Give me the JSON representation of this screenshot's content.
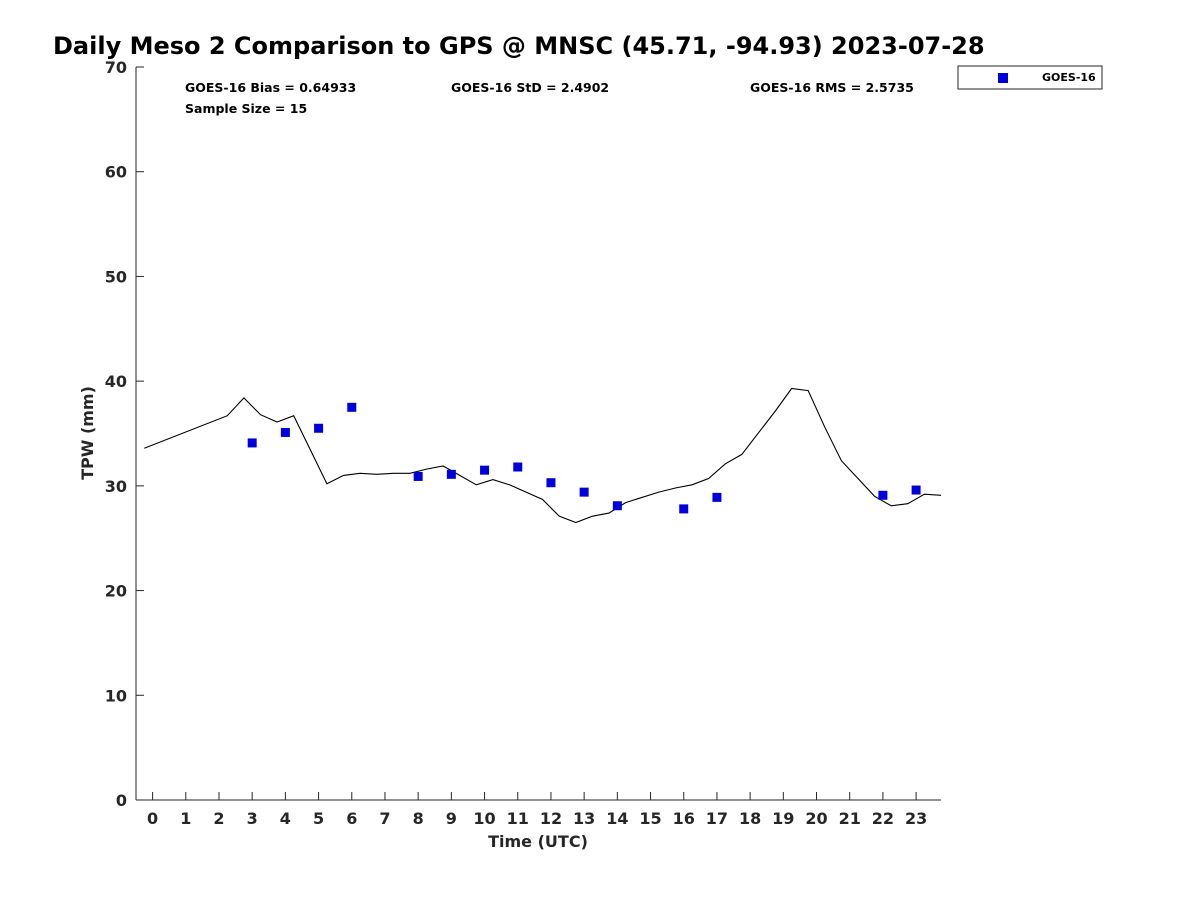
{
  "chart_data": {
    "type": "scatter",
    "title": "Daily Meso 2 Comparison to GPS @ MNSC (45.71, -94.93) 2023-07-28",
    "xlabel": "Time (UTC)",
    "ylabel": "TPW (mm)",
    "xlim": [
      -0.5,
      23.75
    ],
    "ylim": [
      0,
      70
    ],
    "x_ticks": [
      "0",
      "1",
      "2",
      "3",
      "4",
      "5",
      "6",
      "7",
      "8",
      "9",
      "10",
      "11",
      "12",
      "13",
      "14",
      "15",
      "16",
      "17",
      "18",
      "19",
      "20",
      "21",
      "22",
      "23"
    ],
    "y_ticks": [
      "0",
      "10",
      "20",
      "30",
      "40",
      "50",
      "60",
      "70"
    ],
    "grid": false,
    "legend_position": "top-right (outside plot)",
    "stats": {
      "bias": "GOES-16 Bias = 0.64933",
      "std": "GOES-16 StD = 2.4902",
      "rms": "GOES-16 RMS = 2.5735",
      "sample": "Sample Size = 15"
    },
    "series": [
      {
        "name": "GOES-16",
        "kind": "scatter",
        "marker": "square",
        "color": "#0000dd",
        "points": [
          [
            3,
            34.1
          ],
          [
            4,
            35.1
          ],
          [
            5,
            35.5
          ],
          [
            6,
            37.5
          ],
          [
            8,
            30.9
          ],
          [
            9,
            31.1
          ],
          [
            10,
            31.5
          ],
          [
            11,
            31.8
          ],
          [
            12,
            30.3
          ],
          [
            13,
            29.4
          ],
          [
            14,
            28.1
          ],
          [
            16,
            27.8
          ],
          [
            17,
            28.9
          ],
          [
            22,
            29.1
          ],
          [
            23,
            29.6
          ]
        ]
      },
      {
        "kind": "line",
        "color": "#000000",
        "points": [
          [
            -0.25,
            33.6
          ],
          [
            2.25,
            36.7
          ],
          [
            2.75,
            38.4
          ],
          [
            3.25,
            36.8
          ],
          [
            3.75,
            36.1
          ],
          [
            4.25,
            36.7
          ],
          [
            5.25,
            30.2
          ],
          [
            5.75,
            31.0
          ],
          [
            6.25,
            31.2
          ],
          [
            6.75,
            31.1
          ],
          [
            7.25,
            31.2
          ],
          [
            7.75,
            31.2
          ],
          [
            8.25,
            31.6
          ],
          [
            8.75,
            31.9
          ],
          [
            9.25,
            31.0
          ],
          [
            9.75,
            30.1
          ],
          [
            10.25,
            30.6
          ],
          [
            10.75,
            30.1
          ],
          [
            11.75,
            28.7
          ],
          [
            12.25,
            27.1
          ],
          [
            12.75,
            26.5
          ],
          [
            13.25,
            27.1
          ],
          [
            13.75,
            27.4
          ],
          [
            14.25,
            28.4
          ],
          [
            15.25,
            29.4
          ],
          [
            15.75,
            29.8
          ],
          [
            16.25,
            30.1
          ],
          [
            16.75,
            30.7
          ],
          [
            17.25,
            32.1
          ],
          [
            17.75,
            33.0
          ],
          [
            18.75,
            37.1
          ],
          [
            19.25,
            39.3
          ],
          [
            19.75,
            39.1
          ],
          [
            20.25,
            35.6
          ],
          [
            20.75,
            32.4
          ],
          [
            21.75,
            29.0
          ],
          [
            22.25,
            28.1
          ],
          [
            22.75,
            28.3
          ],
          [
            23.25,
            29.2
          ],
          [
            23.75,
            29.1
          ]
        ]
      }
    ]
  }
}
